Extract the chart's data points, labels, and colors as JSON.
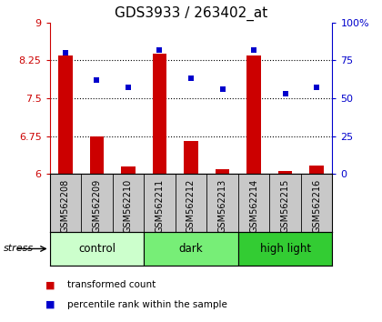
{
  "title": "GDS3933 / 263402_at",
  "samples": [
    "GSM562208",
    "GSM562209",
    "GSM562210",
    "GSM562211",
    "GSM562212",
    "GSM562213",
    "GSM562214",
    "GSM562215",
    "GSM562216"
  ],
  "red_values": [
    8.35,
    6.75,
    6.15,
    8.38,
    6.65,
    6.1,
    8.35,
    6.05,
    6.17
  ],
  "blue_values": [
    80,
    62,
    57,
    82,
    63,
    56,
    82,
    53,
    57
  ],
  "red_baseline": 6.0,
  "ylim_left": [
    6.0,
    9.0
  ],
  "ylim_right": [
    0,
    100
  ],
  "yticks_left": [
    6.0,
    6.75,
    7.5,
    8.25,
    9.0
  ],
  "yticks_right": [
    0,
    25,
    50,
    75,
    100
  ],
  "ytick_labels_left": [
    "6",
    "6.75",
    "7.5",
    "8.25",
    "9"
  ],
  "ytick_labels_right": [
    "0",
    "25",
    "50",
    "75",
    "100%"
  ],
  "grid_values": [
    6.75,
    7.5,
    8.25
  ],
  "groups": [
    {
      "label": "control",
      "indices": [
        0,
        1,
        2
      ],
      "color": "#ccffcc"
    },
    {
      "label": "dark",
      "indices": [
        3,
        4,
        5
      ],
      "color": "#77ee77"
    },
    {
      "label": "high light",
      "indices": [
        6,
        7,
        8
      ],
      "color": "#33cc33"
    }
  ],
  "stress_label": "stress",
  "legend_red": "transformed count",
  "legend_blue": "percentile rank within the sample",
  "red_color": "#cc0000",
  "blue_color": "#0000cc",
  "bar_width": 0.45,
  "marker_size": 5,
  "title_fontsize": 11,
  "tick_fontsize": 8,
  "group_label_fontsize": 8.5,
  "sample_fontsize": 7,
  "legend_fontsize": 7.5
}
